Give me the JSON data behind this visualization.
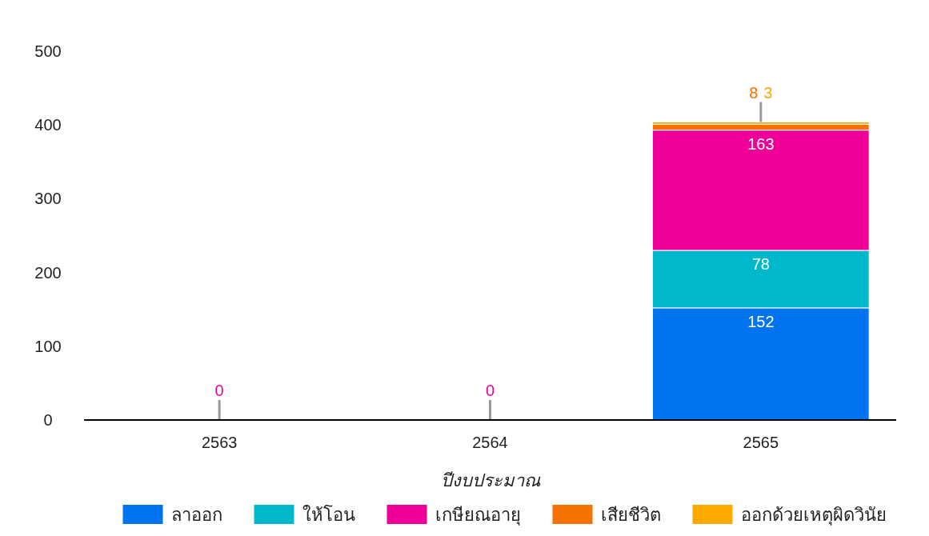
{
  "chart_data": {
    "type": "bar",
    "stacked": true,
    "xlabel": "ปีงบประมาณ",
    "categories": [
      "2563",
      "2564",
      "2565"
    ],
    "series": [
      {
        "name": "ลาออก",
        "color": "#0073ee",
        "values": [
          0,
          0,
          152
        ],
        "value_labels": [
          null,
          null,
          "152"
        ]
      },
      {
        "name": "ให้โอน",
        "color": "#00b8cc",
        "values": [
          0,
          0,
          78
        ],
        "value_labels": [
          null,
          null,
          "78"
        ]
      },
      {
        "name": "เกษียณอายุ",
        "color": "#f00098",
        "values": [
          0,
          0,
          163
        ],
        "value_labels": [
          "0",
          "0",
          "163"
        ]
      },
      {
        "name": "เสียชีวิต",
        "color": "#f57100",
        "values": [
          0,
          0,
          8
        ],
        "value_labels": [
          null,
          null,
          "8"
        ]
      },
      {
        "name": "ออกด้วยเหตุผิดวินัย",
        "color": "#ffa800",
        "values": [
          0,
          0,
          3
        ],
        "value_labels": [
          null,
          null,
          "3"
        ]
      }
    ],
    "ylim": [
      0,
      500
    ],
    "yticks": [
      0,
      100,
      200,
      300,
      400,
      500
    ],
    "grid": false,
    "legend": "bottom"
  }
}
